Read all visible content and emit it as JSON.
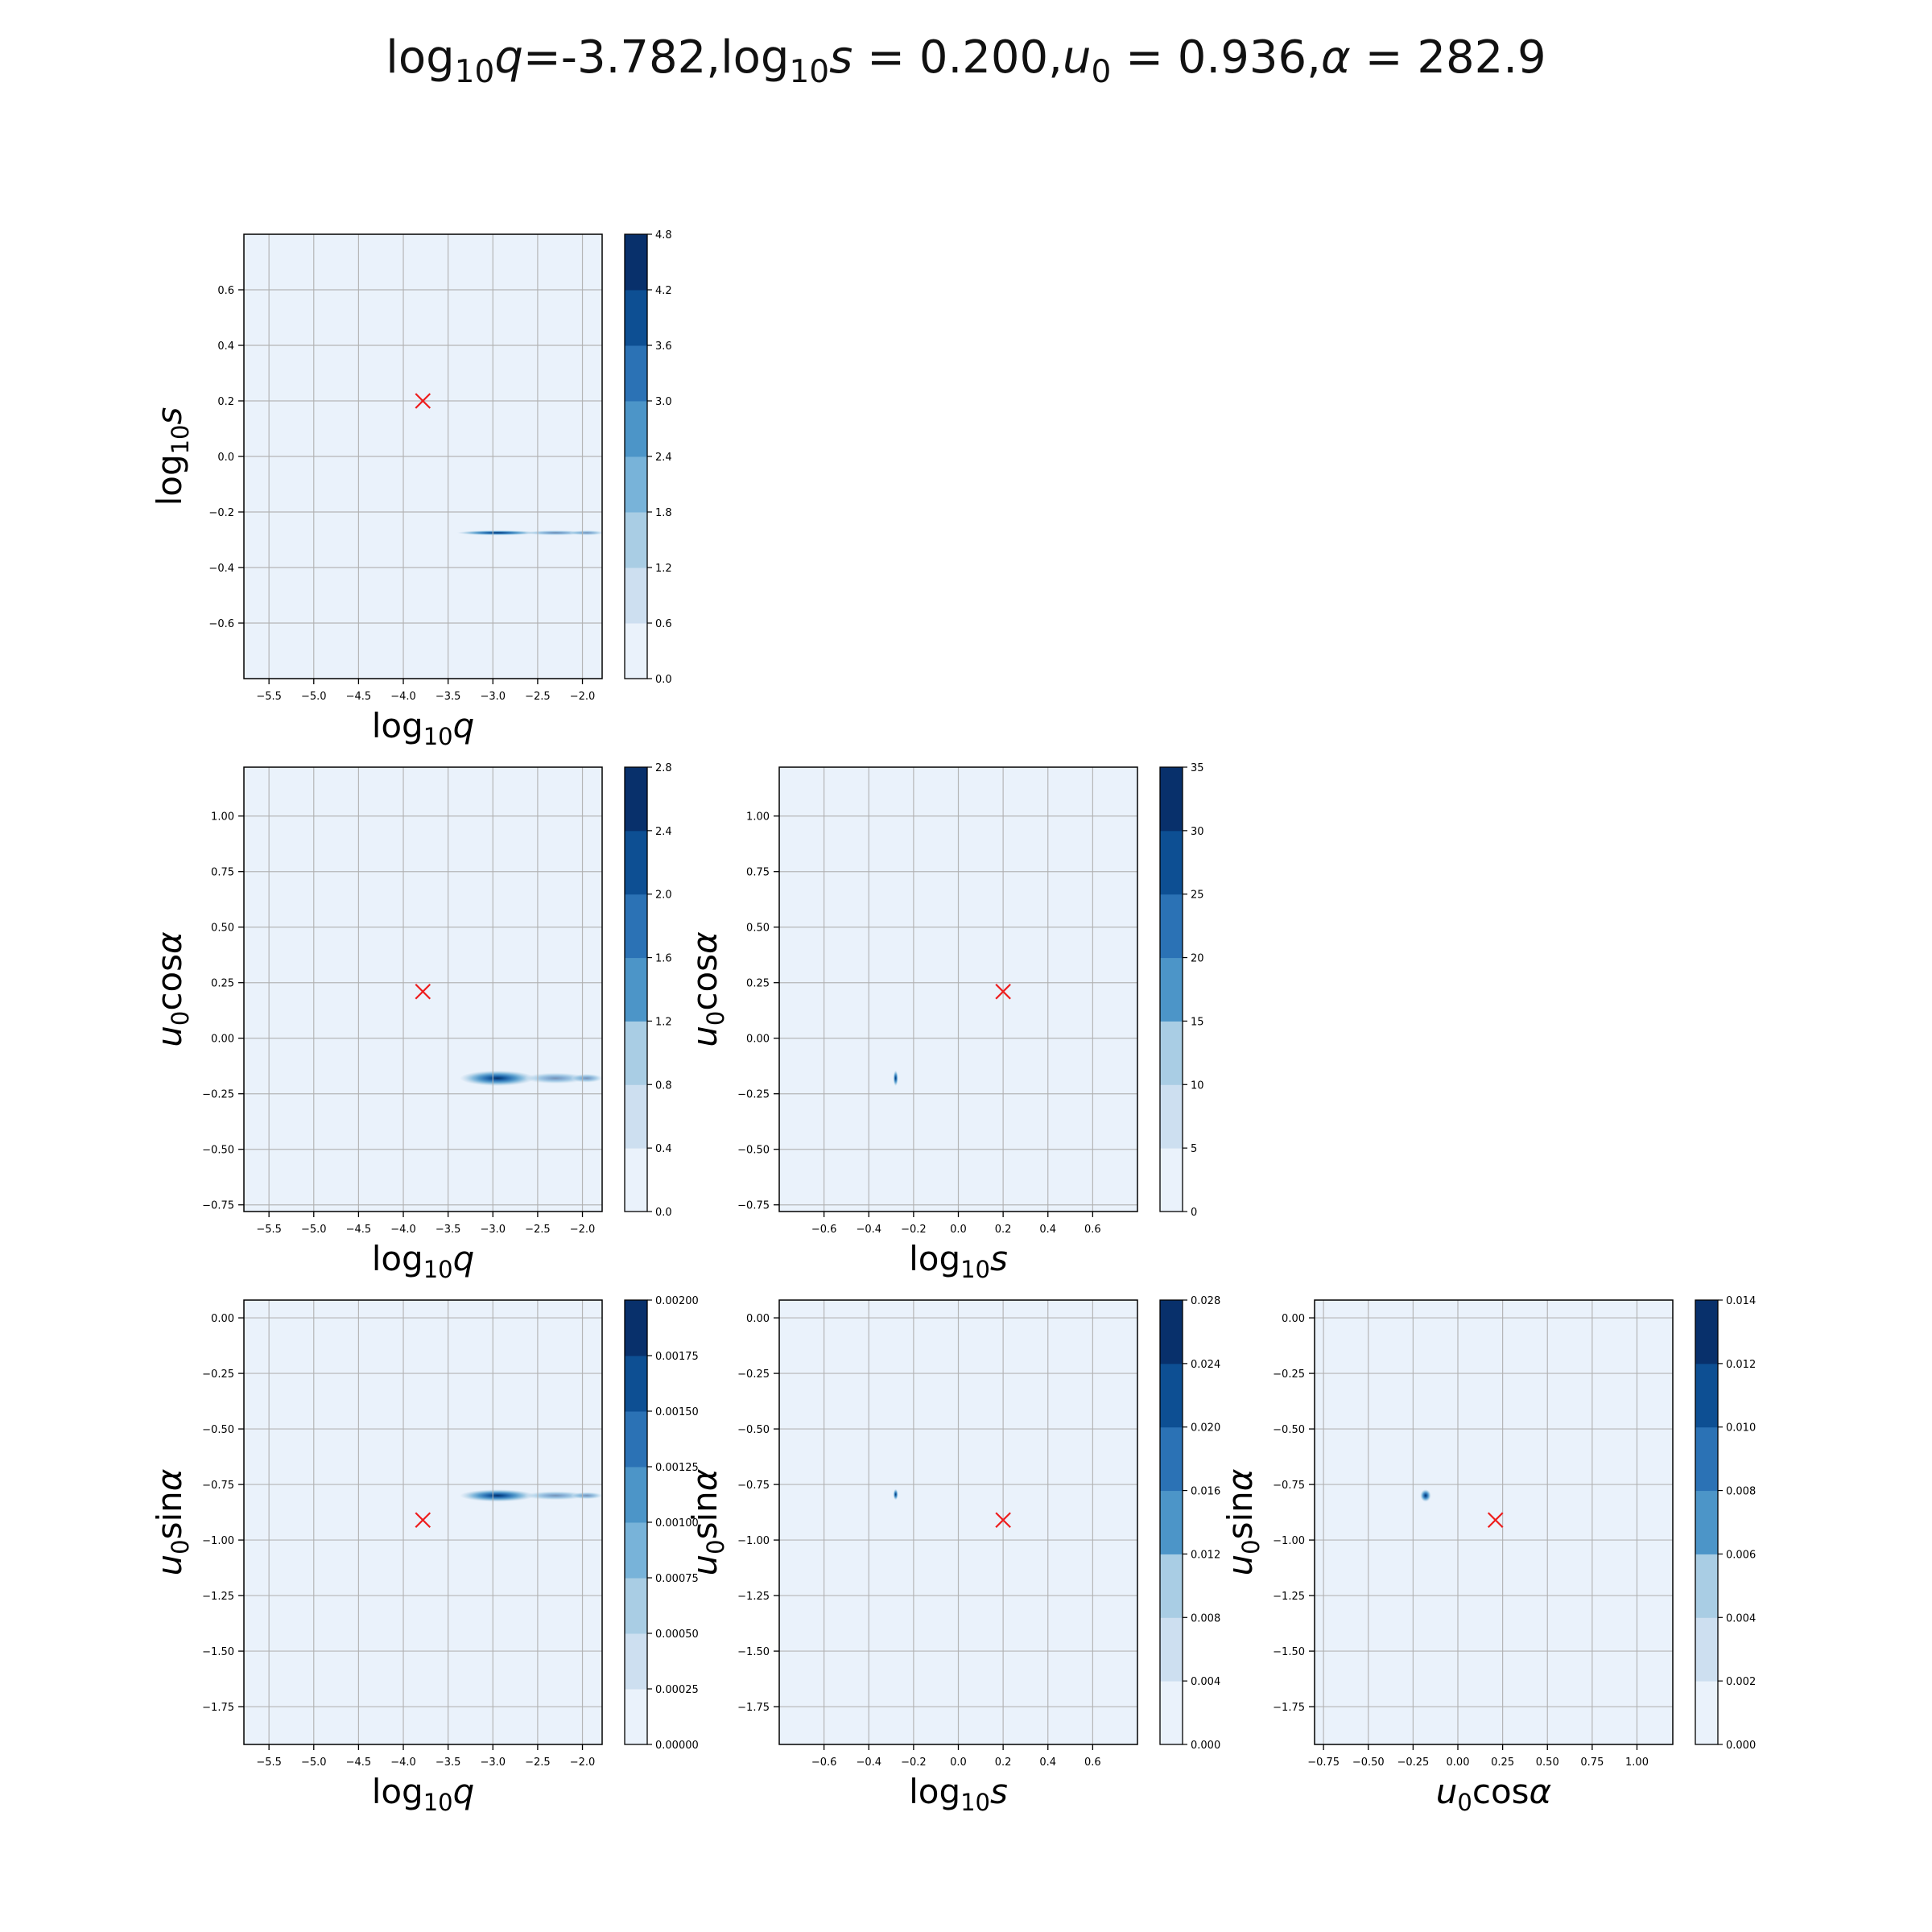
{
  "title": {
    "parts": [
      {
        "t": "log"
      },
      {
        "t": "10",
        "sub": true
      },
      {
        "t": "q",
        "it": true
      },
      {
        "t": "=-3.782,log"
      },
      {
        "t": "10",
        "sub": true
      },
      {
        "t": "s",
        "it": true
      },
      {
        "t": " = 0.200,"
      },
      {
        "t": "u",
        "it": true
      },
      {
        "t": "0",
        "sub": true
      },
      {
        "t": " = 0.936,"
      },
      {
        "t": "α",
        "it": true
      },
      {
        "t": " = 282.9"
      }
    ]
  },
  "axis_labels": {
    "logq": [
      {
        "t": "log"
      },
      {
        "t": "10",
        "sub": true
      },
      {
        "t": "q",
        "it": true
      }
    ],
    "logs": [
      {
        "t": "log"
      },
      {
        "t": "10",
        "sub": true
      },
      {
        "t": "s",
        "it": true
      }
    ],
    "ucos": [
      {
        "t": "u",
        "it": true
      },
      {
        "t": "0",
        "sub": true
      },
      {
        "t": "cos"
      },
      {
        "t": "α",
        "it": true
      }
    ],
    "usin": [
      {
        "t": "u",
        "it": true
      },
      {
        "t": "0",
        "sub": true
      },
      {
        "t": "sin"
      },
      {
        "t": "α",
        "it": true
      }
    ]
  },
  "colors": {
    "background": "#eaf2fb",
    "grid": "#b0b0b0",
    "marker": "#ee1c1c",
    "levels": [
      "#eaf2fb",
      "#cddff0",
      "#a9cde4",
      "#78b3d9",
      "#4c95c8",
      "#2b72b5",
      "#0d4f93",
      "#08306b"
    ]
  },
  "chart_data": [
    {
      "id": "logq-logs",
      "type": "contour",
      "xvar": "logq",
      "yvar": "logs",
      "xlim": [
        -5.78,
        -1.78
      ],
      "ylim": [
        -0.8,
        0.8
      ],
      "xticks": [
        -5.5,
        -5.0,
        -4.5,
        -4.0,
        -3.5,
        -3.0,
        -2.5,
        -2.0
      ],
      "xticklabels": [
        "−5.5",
        "−5.0",
        "−4.5",
        "−4.0",
        "−3.5",
        "−3.0",
        "−2.5",
        "−2.0"
      ],
      "yticks": [
        -0.6,
        -0.4,
        -0.2,
        0.0,
        0.2,
        0.4,
        0.6
      ],
      "yticklabels": [
        "−0.6",
        "−0.4",
        "−0.2",
        "0.0",
        "0.2",
        "0.4",
        "0.6"
      ],
      "colorbar": {
        "ticks": [
          0.0,
          0.6,
          1.2,
          1.8,
          2.4,
          3.0,
          3.6,
          4.2,
          4.8
        ],
        "labels": [
          "0.0",
          "0.6",
          "1.2",
          "1.8",
          "2.4",
          "3.0",
          "3.6",
          "4.2",
          "4.8"
        ]
      },
      "truth": [
        -3.782,
        0.2
      ],
      "blobs": [
        {
          "x": -2.95,
          "y": -0.275,
          "rx": 0.45,
          "ry": 0.008,
          "w": 1.0
        },
        {
          "x": -2.3,
          "y": -0.275,
          "rx": 0.35,
          "ry": 0.006,
          "w": 0.55
        },
        {
          "x": -1.95,
          "y": -0.275,
          "rx": 0.2,
          "ry": 0.005,
          "w": 0.5
        }
      ]
    },
    {
      "id": "logq-ucos",
      "type": "contour",
      "xvar": "logq",
      "yvar": "ucos",
      "xlim": [
        -5.78,
        -1.78
      ],
      "ylim": [
        -0.78,
        1.22
      ],
      "xticks": [
        -5.5,
        -5.0,
        -4.5,
        -4.0,
        -3.5,
        -3.0,
        -2.5,
        -2.0
      ],
      "xticklabels": [
        "−5.5",
        "−5.0",
        "−4.5",
        "−4.0",
        "−3.5",
        "−3.0",
        "−2.5",
        "−2.0"
      ],
      "yticks": [
        -0.75,
        -0.5,
        -0.25,
        0.0,
        0.25,
        0.5,
        0.75,
        1.0
      ],
      "yticklabels": [
        "−0.75",
        "−0.50",
        "−0.25",
        "0.00",
        "0.25",
        "0.50",
        "0.75",
        "1.00"
      ],
      "colorbar": {
        "ticks": [
          0.0,
          0.4,
          0.8,
          1.2,
          1.6,
          2.0,
          2.4,
          2.8
        ],
        "labels": [
          "0.0",
          "0.4",
          "0.8",
          "1.2",
          "1.6",
          "2.0",
          "2.4",
          "2.8"
        ]
      },
      "truth": [
        -3.782,
        0.21
      ],
      "blobs": [
        {
          "x": -2.95,
          "y": -0.18,
          "rx": 0.42,
          "ry": 0.035,
          "w": 1.0
        },
        {
          "x": -2.3,
          "y": -0.18,
          "rx": 0.35,
          "ry": 0.025,
          "w": 0.5
        },
        {
          "x": -1.95,
          "y": -0.18,
          "rx": 0.18,
          "ry": 0.02,
          "w": 0.5
        }
      ]
    },
    {
      "id": "logs-ucos",
      "type": "contour",
      "xvar": "logs",
      "yvar": "ucos",
      "xlim": [
        -0.8,
        0.8
      ],
      "ylim": [
        -0.78,
        1.22
      ],
      "xticks": [
        -0.6,
        -0.4,
        -0.2,
        0.0,
        0.2,
        0.4,
        0.6
      ],
      "xticklabels": [
        "−0.6",
        "−0.4",
        "−0.2",
        "0.0",
        "0.2",
        "0.4",
        "0.6"
      ],
      "yticks": [
        -0.75,
        -0.5,
        -0.25,
        0.0,
        0.25,
        0.5,
        0.75,
        1.0
      ],
      "yticklabels": [
        "−0.75",
        "−0.50",
        "−0.25",
        "0.00",
        "0.25",
        "0.50",
        "0.75",
        "1.00"
      ],
      "colorbar": {
        "ticks": [
          0,
          5,
          10,
          15,
          20,
          25,
          30,
          35
        ],
        "labels": [
          "0",
          "5",
          "10",
          "15",
          "20",
          "25",
          "30",
          "35"
        ]
      },
      "truth": [
        0.2,
        0.21
      ],
      "blobs": [
        {
          "x": -0.28,
          "y": -0.18,
          "rx": 0.008,
          "ry": 0.035,
          "w": 1.0
        }
      ]
    },
    {
      "id": "logq-usin",
      "type": "contour",
      "xvar": "logq",
      "yvar": "usin",
      "xlim": [
        -5.78,
        -1.78
      ],
      "ylim": [
        -1.92,
        0.08
      ],
      "xticks": [
        -5.5,
        -5.0,
        -4.5,
        -4.0,
        -3.5,
        -3.0,
        -2.5,
        -2.0
      ],
      "xticklabels": [
        "−5.5",
        "−5.0",
        "−4.5",
        "−4.0",
        "−3.5",
        "−3.0",
        "−2.5",
        "−2.0"
      ],
      "yticks": [
        -1.75,
        -1.5,
        -1.25,
        -1.0,
        -0.75,
        -0.5,
        -0.25,
        0.0
      ],
      "yticklabels": [
        "−1.75",
        "−1.50",
        "−1.25",
        "−1.00",
        "−0.75",
        "−0.50",
        "−0.25",
        "0.00"
      ],
      "colorbar": {
        "ticks": [
          0.0,
          0.00025,
          0.0005,
          0.00075,
          0.001,
          0.00125,
          0.0015,
          0.00175,
          0.002
        ],
        "labels": [
          "0.00000",
          "0.00025",
          "0.00050",
          "0.00075",
          "0.00100",
          "0.00125",
          "0.00150",
          "0.00175",
          "0.00200"
        ]
      },
      "truth": [
        -3.782,
        -0.91
      ],
      "blobs": [
        {
          "x": -2.95,
          "y": -0.8,
          "rx": 0.42,
          "ry": 0.028,
          "w": 1.0
        },
        {
          "x": -2.3,
          "y": -0.8,
          "rx": 0.35,
          "ry": 0.02,
          "w": 0.5
        },
        {
          "x": -1.95,
          "y": -0.8,
          "rx": 0.18,
          "ry": 0.016,
          "w": 0.5
        }
      ]
    },
    {
      "id": "logs-usin",
      "type": "contour",
      "xvar": "logs",
      "yvar": "usin",
      "xlim": [
        -0.8,
        0.8
      ],
      "ylim": [
        -1.92,
        0.08
      ],
      "xticks": [
        -0.6,
        -0.4,
        -0.2,
        0.0,
        0.2,
        0.4,
        0.6
      ],
      "xticklabels": [
        "−0.6",
        "−0.4",
        "−0.2",
        "0.0",
        "0.2",
        "0.4",
        "0.6"
      ],
      "yticks": [
        -1.75,
        -1.5,
        -1.25,
        -1.0,
        -0.75,
        -0.5,
        -0.25,
        0.0
      ],
      "yticklabels": [
        "−1.75",
        "−1.50",
        "−1.25",
        "−1.00",
        "−0.75",
        "−0.50",
        "−0.25",
        "0.00"
      ],
      "colorbar": {
        "ticks": [
          0.0,
          0.004,
          0.008,
          0.012,
          0.016,
          0.02,
          0.024,
          0.028
        ],
        "labels": [
          "0.000",
          "0.004",
          "0.008",
          "0.012",
          "0.016",
          "0.020",
          "0.024",
          "0.028"
        ]
      },
      "truth": [
        0.2,
        -0.91
      ],
      "blobs": [
        {
          "x": -0.28,
          "y": -0.795,
          "rx": 0.007,
          "ry": 0.025,
          "w": 1.0
        }
      ]
    },
    {
      "id": "ucos-usin",
      "type": "contour",
      "xvar": "ucos",
      "yvar": "usin",
      "xlim": [
        -0.8,
        1.2
      ],
      "ylim": [
        -1.92,
        0.08
      ],
      "xticks": [
        -0.75,
        -0.5,
        -0.25,
        0.0,
        0.25,
        0.5,
        0.75,
        1.0
      ],
      "xticklabels": [
        "−0.75",
        "−0.50",
        "−0.25",
        "0.00",
        "0.25",
        "0.50",
        "0.75",
        "1.00"
      ],
      "yticks": [
        -1.75,
        -1.5,
        -1.25,
        -1.0,
        -0.75,
        -0.5,
        -0.25,
        0.0
      ],
      "yticklabels": [
        "−1.75",
        "−1.50",
        "−1.25",
        "−1.00",
        "−0.75",
        "−0.50",
        "−0.25",
        "0.00"
      ],
      "colorbar": {
        "ticks": [
          0.0,
          0.002,
          0.004,
          0.006,
          0.008,
          0.01,
          0.012,
          0.014
        ],
        "labels": [
          "0.000",
          "0.002",
          "0.004",
          "0.006",
          "0.008",
          "0.010",
          "0.012",
          "0.014"
        ]
      },
      "truth": [
        0.21,
        -0.91
      ],
      "blobs": [
        {
          "x": -0.18,
          "y": -0.8,
          "rx": 0.03,
          "ry": 0.028,
          "w": 1.0
        }
      ]
    }
  ]
}
